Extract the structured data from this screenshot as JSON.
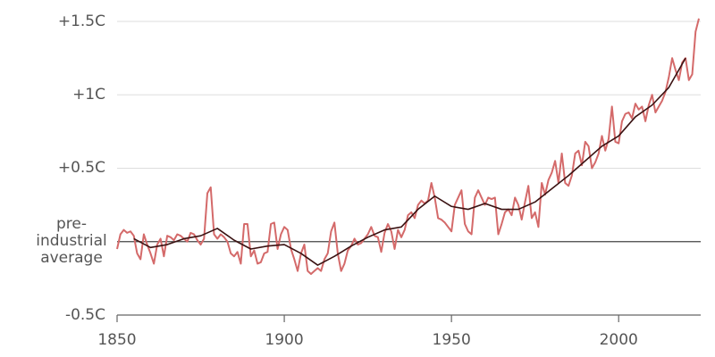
{
  "chart_data": {
    "type": "line",
    "x": [
      1850,
      1851,
      1852,
      1853,
      1854,
      1855,
      1856,
      1857,
      1858,
      1859,
      1860,
      1861,
      1862,
      1863,
      1864,
      1865,
      1866,
      1867,
      1868,
      1869,
      1870,
      1871,
      1872,
      1873,
      1874,
      1875,
      1876,
      1877,
      1878,
      1879,
      1880,
      1881,
      1882,
      1883,
      1884,
      1885,
      1886,
      1887,
      1888,
      1889,
      1890,
      1891,
      1892,
      1893,
      1894,
      1895,
      1896,
      1897,
      1898,
      1899,
      1900,
      1901,
      1902,
      1903,
      1904,
      1905,
      1906,
      1907,
      1908,
      1909,
      1910,
      1911,
      1912,
      1913,
      1914,
      1915,
      1916,
      1917,
      1918,
      1919,
      1920,
      1921,
      1922,
      1923,
      1924,
      1925,
      1926,
      1927,
      1928,
      1929,
      1930,
      1931,
      1932,
      1933,
      1934,
      1935,
      1936,
      1937,
      1938,
      1939,
      1940,
      1941,
      1942,
      1943,
      1944,
      1945,
      1946,
      1947,
      1948,
      1949,
      1950,
      1951,
      1952,
      1953,
      1954,
      1955,
      1956,
      1957,
      1958,
      1959,
      1960,
      1961,
      1962,
      1963,
      1964,
      1965,
      1966,
      1967,
      1968,
      1969,
      1970,
      1971,
      1972,
      1973,
      1974,
      1975,
      1976,
      1977,
      1978,
      1979,
      1980,
      1981,
      1982,
      1983,
      1984,
      1985,
      1986,
      1987,
      1988,
      1989,
      1990,
      1991,
      1992,
      1993,
      1994,
      1995,
      1996,
      1997,
      1998,
      1999,
      2000,
      2001,
      2002,
      2003,
      2004,
      2005,
      2006,
      2007,
      2008,
      2009,
      2010,
      2011,
      2012,
      2013,
      2014,
      2015,
      2016,
      2017,
      2018,
      2019,
      2020,
      2021,
      2022,
      2023,
      2024
    ],
    "series": [
      {
        "color": "#d46a6a",
        "values": [
          -0.05,
          0.05,
          0.08,
          0.06,
          0.07,
          0.04,
          -0.08,
          -0.12,
          0.05,
          -0.02,
          -0.08,
          -0.15,
          -0.02,
          0.02,
          -0.1,
          0.04,
          0.03,
          0.01,
          0.05,
          0.04,
          0.02,
          0.0,
          0.06,
          0.05,
          0.01,
          -0.02,
          0.02,
          0.33,
          0.37,
          0.05,
          0.02,
          0.05,
          0.03,
          0.0,
          -0.08,
          -0.1,
          -0.07,
          -0.15,
          0.12,
          0.12,
          -0.1,
          -0.06,
          -0.15,
          -0.14,
          -0.08,
          -0.07,
          0.12,
          0.13,
          -0.05,
          0.05,
          0.1,
          0.08,
          -0.05,
          -0.12,
          -0.2,
          -0.08,
          -0.02,
          -0.2,
          -0.22,
          -0.2,
          -0.18,
          -0.2,
          -0.12,
          -0.08,
          0.07,
          0.13,
          -0.08,
          -0.2,
          -0.15,
          -0.06,
          -0.03,
          0.02,
          -0.02,
          -0.01,
          0.02,
          0.05,
          0.1,
          0.04,
          0.03,
          -0.07,
          0.06,
          0.12,
          0.07,
          -0.05,
          0.08,
          0.03,
          0.08,
          0.18,
          0.2,
          0.16,
          0.25,
          0.28,
          0.26,
          0.28,
          0.4,
          0.3,
          0.16,
          0.15,
          0.13,
          0.1,
          0.07,
          0.25,
          0.3,
          0.35,
          0.12,
          0.07,
          0.05,
          0.3,
          0.35,
          0.3,
          0.25,
          0.3,
          0.29,
          0.3,
          0.05,
          0.12,
          0.2,
          0.22,
          0.18,
          0.3,
          0.25,
          0.15,
          0.27,
          0.38,
          0.16,
          0.2,
          0.1,
          0.4,
          0.32,
          0.42,
          0.47,
          0.55,
          0.4,
          0.6,
          0.4,
          0.38,
          0.45,
          0.6,
          0.62,
          0.52,
          0.68,
          0.65,
          0.5,
          0.54,
          0.6,
          0.72,
          0.62,
          0.7,
          0.92,
          0.68,
          0.67,
          0.82,
          0.87,
          0.88,
          0.84,
          0.94,
          0.9,
          0.92,
          0.82,
          0.93,
          1.0,
          0.88,
          0.92,
          0.96,
          1.02,
          1.12,
          1.25,
          1.17,
          1.1,
          1.22,
          1.25,
          1.1,
          1.14,
          1.43,
          1.52
        ]
      },
      {
        "color": "#3a1212",
        "x": [
          1855,
          1860,
          1865,
          1870,
          1875,
          1880,
          1885,
          1890,
          1895,
          1900,
          1905,
          1910,
          1915,
          1920,
          1925,
          1930,
          1935,
          1940,
          1945,
          1950,
          1955,
          1960,
          1965,
          1970,
          1975,
          1980,
          1985,
          1990,
          1995,
          2000,
          2005,
          2010,
          2015,
          2020
        ],
        "values": [
          0.02,
          -0.04,
          -0.02,
          0.02,
          0.04,
          0.09,
          0.01,
          -0.05,
          -0.03,
          -0.02,
          -0.08,
          -0.16,
          -0.1,
          -0.03,
          0.03,
          0.08,
          0.1,
          0.22,
          0.31,
          0.24,
          0.22,
          0.26,
          0.22,
          0.22,
          0.27,
          0.36,
          0.45,
          0.55,
          0.65,
          0.72,
          0.85,
          0.93,
          1.05,
          1.25
        ]
      }
    ],
    "xlim": [
      1850,
      2024
    ],
    "xticks": [
      1850,
      1900,
      1950,
      2000
    ],
    "ylim": [
      -0.5,
      1.5
    ],
    "yticks": [
      {
        "value": -0.5,
        "label": "-0.5C"
      },
      {
        "value": 0,
        "label": "pre-industrial average"
      },
      {
        "value": 0.5,
        "label": "+0.5C"
      },
      {
        "value": 1,
        "label": "+1C"
      },
      {
        "value": 1.5,
        "label": "+1.5C"
      }
    ],
    "grid": true
  }
}
